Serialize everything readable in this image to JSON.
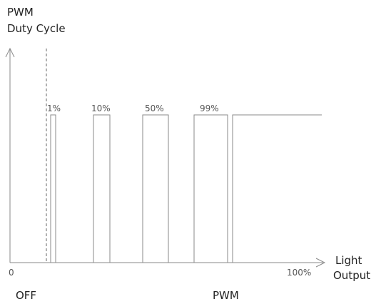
{
  "diagram": {
    "y_axis_title_line1": "PWM",
    "y_axis_title_line2": "Duty Cycle",
    "x_axis_title_line1": "Light",
    "x_axis_title_line2": "Output",
    "x_tick_start": "0",
    "x_tick_end": "100%",
    "region_off": "OFF",
    "region_pwm": "PWM",
    "pulse_labels": [
      "1%",
      "10%",
      "50%",
      "99%"
    ],
    "line_color": "#8a8a8a",
    "dashed_marker": "off-threshold"
  }
}
